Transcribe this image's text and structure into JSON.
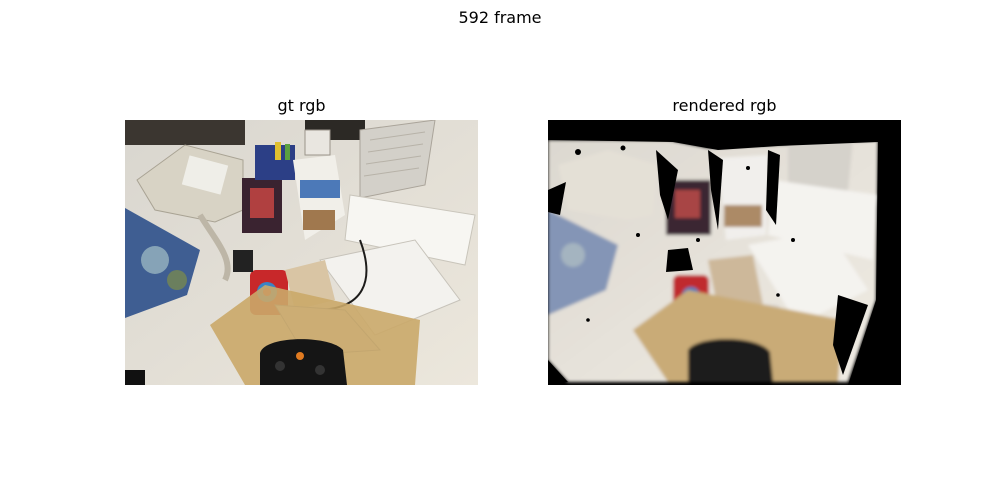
{
  "figure": {
    "suptitle": "592 frame",
    "panels": [
      {
        "title": "gt rgb",
        "image_icon": "desk-scene-photo"
      },
      {
        "title": "rendered rgb",
        "image_icon": "rendered-desk-scene"
      }
    ]
  },
  "colors": {
    "background": "#ffffff",
    "desk": "#e6e1d6",
    "black_border": "#000000"
  }
}
